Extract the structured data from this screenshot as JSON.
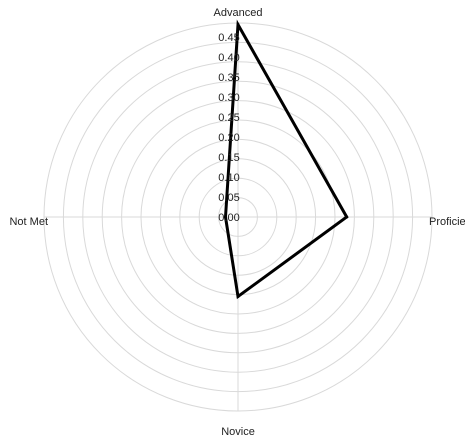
{
  "chart_data": {
    "type": "radar",
    "axes": [
      "Advanced",
      "Proficient",
      "Novice",
      "Not Met"
    ],
    "series": [
      {
        "values": [
          0.46,
          0.26,
          0.19,
          0.03
        ]
      }
    ],
    "rlim": [
      0,
      0.45
    ],
    "ticks": [
      "0.00",
      "0.05",
      "0.10",
      "0.15",
      "0.20",
      "0.25",
      "0.30",
      "0.35",
      "0.40",
      "0.45"
    ],
    "grid": true,
    "colors": {
      "series": "#000000",
      "grid": "#d9d9d9"
    }
  }
}
